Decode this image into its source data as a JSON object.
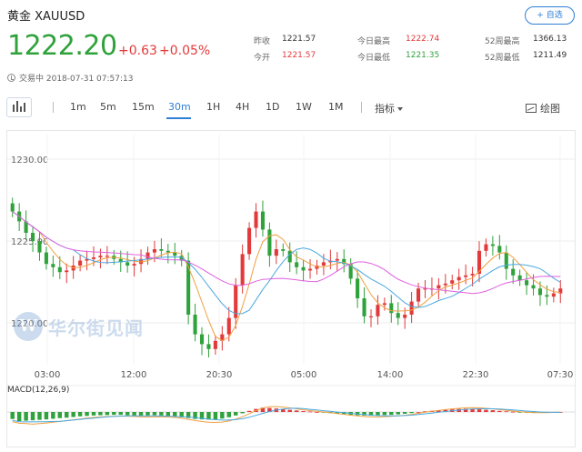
{
  "header": {
    "title": "黄金 XAUUSD",
    "watch_button": "+ 自选",
    "price": "1222.20",
    "change": "+0.63",
    "change_pct": "+0.05%",
    "status": "交易中 2018-07-31 07:57:13"
  },
  "stats": [
    {
      "label": "昨收",
      "value": "1221.57",
      "tone": "neutral"
    },
    {
      "label": "今开",
      "value": "1221.57",
      "tone": "up"
    },
    {
      "label": "今日最高",
      "value": "1222.74",
      "tone": "up"
    },
    {
      "label": "今日最低",
      "value": "1221.35",
      "tone": "down"
    },
    {
      "label": "52周最高",
      "value": "1366.13",
      "tone": "neutral"
    },
    {
      "label": "52周最低",
      "value": "1211.49",
      "tone": "neutral"
    }
  ],
  "toolbar": {
    "periods": [
      "1m",
      "5m",
      "15m",
      "30m",
      "1H",
      "4H",
      "1D",
      "1W",
      "1M"
    ],
    "active_period": "30m",
    "indicator_label": "指标",
    "draw_label": "绘图"
  },
  "watermark": {
    "logo_letter": "W",
    "text": "华尔街见闻"
  },
  "colors": {
    "up": "#e23a3a",
    "down": "#2fa23b",
    "accent": "#2f7fd6",
    "ma_fast": "#f0a040",
    "ma_mid": "#4aa8e0",
    "ma_slow": "#e060e0"
  },
  "chart_data": {
    "type": "candlestick",
    "title": "",
    "x_ticks": [
      "03:00",
      "12:00",
      "20:30",
      "05:00",
      "14:00",
      "22:30",
      "07:30"
    ],
    "y_ticks": [
      "1230.00",
      "1225.00",
      "1220.00"
    ],
    "ylim": [
      1217.5,
      1231.5
    ],
    "close": [
      1226.8,
      1226.2,
      1225.5,
      1225.0,
      1224.3,
      1223.6,
      1223.4,
      1223.1,
      1223.2,
      1223.5,
      1223.8,
      1223.9,
      1224.0,
      1224.1,
      1224.1,
      1223.9,
      1223.7,
      1223.5,
      1223.6,
      1223.9,
      1224.3,
      1224.5,
      1224.4,
      1224.3,
      1224.1,
      1223.8,
      1220.5,
      1219.3,
      1218.7,
      1218.4,
      1218.9,
      1219.3,
      1220.3,
      1222.3,
      1224.2,
      1225.8,
      1226.8,
      1225.7,
      1224.1,
      1224.5,
      1224.4,
      1223.7,
      1223.4,
      1223.2,
      1223.3,
      1223.5,
      1223.7,
      1223.8,
      1223.9,
      1223.6,
      1222.7,
      1221.5,
      1220.4,
      1220.4,
      1221.1,
      1221.2,
      1220.6,
      1220.3,
      1220.5,
      1221.3,
      1222.1,
      1222.1,
      1222.1,
      1222.3,
      1222.4,
      1222.6,
      1222.8,
      1222.9,
      1223.0,
      1224.4,
      1224.8,
      1224.7,
      1224.3,
      1223.3,
      1222.9,
      1222.6,
      1222.3,
      1222.1,
      1221.7,
      1221.6,
      1221.8,
      1222.1
    ],
    "macd": {
      "label": "MACD(12,26,9)",
      "histogram": [
        -0.32,
        -0.42,
        -0.4,
        -0.38,
        -0.36,
        -0.34,
        -0.31,
        -0.28,
        -0.26,
        -0.23,
        -0.2,
        -0.18,
        -0.16,
        -0.15,
        -0.14,
        -0.13,
        -0.13,
        -0.15,
        -0.16,
        -0.17,
        -0.16,
        -0.15,
        -0.16,
        -0.18,
        -0.2,
        -0.24,
        -0.28,
        -0.32,
        -0.34,
        -0.35,
        -0.34,
        -0.3,
        -0.24,
        -0.16,
        -0.06,
        0.05,
        0.14,
        0.2,
        0.18,
        0.16,
        0.14,
        0.1,
        0.07,
        0.04,
        0.02,
        0.0,
        -0.02,
        -0.05,
        -0.08,
        -0.1,
        -0.13,
        -0.15,
        -0.16,
        -0.17,
        -0.16,
        -0.14,
        -0.13,
        -0.11,
        -0.08,
        -0.05,
        0.0,
        0.03,
        0.05,
        0.08,
        0.1,
        0.12,
        0.14,
        0.15,
        0.14,
        0.12,
        0.1,
        0.08,
        0.05,
        0.03,
        0.01,
        -0.01,
        -0.02,
        -0.03,
        -0.02,
        -0.01,
        -0.01,
        0.0
      ]
    }
  }
}
